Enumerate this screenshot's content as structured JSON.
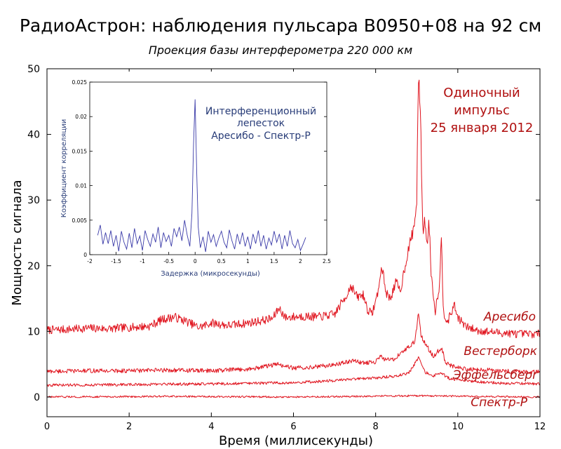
{
  "title": "РадиоАстрон: наблюдения пульсара B0950+08 на 92 см",
  "subtitle": "Проекция базы интерферометра  220 000 км",
  "annotation": [
    "Одиночный",
    "импульс",
    "25 января 2012"
  ],
  "colors": {
    "signal": "#e0141e",
    "annotation": "#b01010",
    "inset": "#3a3aa8",
    "inset_text": "#283c78"
  },
  "chart_data": [
    {
      "type": "line",
      "xlabel": "Время (миллисекунды)",
      "ylabel": "Мощность сигнала",
      "xlim": [
        0,
        12
      ],
      "ylim": [
        -3,
        50
      ],
      "xticks": [
        0,
        2,
        4,
        6,
        8,
        10,
        12
      ],
      "yticks": [
        0,
        10,
        20,
        30,
        40,
        50
      ],
      "grid": false,
      "series": [
        {
          "name": "Аресибо",
          "x": [
            0,
            0.5,
            1.0,
            1.5,
            2.0,
            2.5,
            2.8,
            3.1,
            3.4,
            3.7,
            4.0,
            4.4,
            4.8,
            5.2,
            5.5,
            5.65,
            5.8,
            6.2,
            6.6,
            7.0,
            7.3,
            7.4,
            7.55,
            7.7,
            7.8,
            7.9,
            8.0,
            8.1,
            8.15,
            8.25,
            8.35,
            8.5,
            8.6,
            8.7,
            8.8,
            8.9,
            8.95,
            9.0,
            9.03,
            9.06,
            9.1,
            9.15,
            9.2,
            9.25,
            9.3,
            9.35,
            9.45,
            9.55,
            9.6,
            9.65,
            9.75,
            9.85,
            9.9,
            10.0,
            10.1,
            10.2,
            10.5,
            11.0,
            11.5,
            12.0
          ],
          "values": [
            10.2,
            10.3,
            10.5,
            10.4,
            10.6,
            10.8,
            11.8,
            12.2,
            11.5,
            10.6,
            11.3,
            10.9,
            11.2,
            11.6,
            12.0,
            13.6,
            12.1,
            12.3,
            12.2,
            12.6,
            15.6,
            17.0,
            15.2,
            15.6,
            13.4,
            12.6,
            14.5,
            17.5,
            20.0,
            16.0,
            15.0,
            17.5,
            16.0,
            19.5,
            22.5,
            25.0,
            26.5,
            30.0,
            45.0,
            48.5,
            40.0,
            25.0,
            27.0,
            23.0,
            27.0,
            19.0,
            13.0,
            17.0,
            24.0,
            13.0,
            11.5,
            12.8,
            14.2,
            12.2,
            11.4,
            10.7,
            10.1,
            9.8,
            9.6,
            9.6
          ]
        },
        {
          "name": "Вестерборк",
          "x": [
            0,
            1,
            2,
            3,
            4,
            5,
            5.6,
            6.0,
            6.5,
            7.0,
            7.3,
            7.5,
            7.7,
            8.0,
            8.1,
            8.2,
            8.4,
            8.6,
            8.8,
            8.95,
            9.05,
            9.1,
            9.2,
            9.4,
            9.55,
            9.6,
            9.7,
            9.9,
            10.2,
            11.0,
            12.0
          ],
          "values": [
            3.9,
            4.0,
            4.0,
            4.1,
            4.0,
            4.3,
            5.0,
            4.4,
            4.6,
            4.9,
            5.4,
            5.5,
            5.2,
            5.3,
            6.3,
            5.8,
            5.6,
            6.6,
            7.6,
            8.4,
            13.0,
            9.5,
            8.2,
            6.2,
            7.2,
            7.6,
            5.3,
            4.6,
            4.3,
            4.0,
            3.8
          ]
        },
        {
          "name": "Эффельсберг",
          "x": [
            0,
            2,
            4,
            6,
            7,
            8,
            8.5,
            8.8,
            9.0,
            9.05,
            9.2,
            9.4,
            9.6,
            9.8,
            10.5,
            11.2,
            12.0
          ],
          "values": [
            1.8,
            1.9,
            2.0,
            2.2,
            2.5,
            2.9,
            3.2,
            3.6,
            5.5,
            6.0,
            3.8,
            3.2,
            3.6,
            2.8,
            2.3,
            2.1,
            2.0
          ]
        },
        {
          "name": "Спектр-Р",
          "x": [
            0,
            3,
            6,
            9,
            12
          ],
          "values": [
            0.0,
            0.1,
            0.0,
            0.2,
            0.0
          ]
        }
      ]
    },
    {
      "type": "line",
      "xlabel": "Задержка (микросекунды)",
      "ylabel": "Коэффициент корреляции",
      "xlim": [
        -2,
        2.5
      ],
      "ylim": [
        0,
        0.025
      ],
      "xticks": [
        "-2",
        "-1.5",
        "-1",
        "-0.5",
        "0",
        "0.5",
        "1",
        "1.5",
        "2",
        "2.5"
      ],
      "yticks": [
        "0",
        "0.005",
        "0.01",
        "0.015",
        "0.02",
        "0.025"
      ],
      "grid": false,
      "annotation": [
        "Интерференционный",
        "лепесток",
        "Аресибо - Спектр-Р"
      ],
      "series": [
        {
          "x": [
            -1.85,
            -1.8,
            -1.75,
            -1.7,
            -1.65,
            -1.6,
            -1.55,
            -1.5,
            -1.45,
            -1.4,
            -1.35,
            -1.3,
            -1.25,
            -1.2,
            -1.15,
            -1.1,
            -1.05,
            -1.0,
            -0.95,
            -0.9,
            -0.85,
            -0.8,
            -0.75,
            -0.7,
            -0.65,
            -0.6,
            -0.55,
            -0.5,
            -0.45,
            -0.4,
            -0.35,
            -0.3,
            -0.25,
            -0.2,
            -0.15,
            -0.1,
            -0.06,
            -0.03,
            0.0,
            0.03,
            0.06,
            0.1,
            0.15,
            0.2,
            0.25,
            0.3,
            0.35,
            0.4,
            0.45,
            0.5,
            0.55,
            0.6,
            0.65,
            0.7,
            0.75,
            0.8,
            0.85,
            0.9,
            0.95,
            1.0,
            1.05,
            1.1,
            1.15,
            1.2,
            1.25,
            1.3,
            1.35,
            1.4,
            1.45,
            1.5,
            1.55,
            1.6,
            1.65,
            1.7,
            1.75,
            1.8,
            1.85,
            1.9,
            1.95,
            2.0,
            2.05,
            2.1
          ],
          "values": [
            0.0028,
            0.0043,
            0.0015,
            0.0032,
            0.0016,
            0.0035,
            0.0012,
            0.0028,
            0.0005,
            0.0034,
            0.0018,
            0.0008,
            0.0031,
            0.001,
            0.0038,
            0.0016,
            0.0027,
            0.0006,
            0.0035,
            0.0022,
            0.0012,
            0.003,
            0.0018,
            0.004,
            0.001,
            0.0032,
            0.0019,
            0.0028,
            0.0012,
            0.0038,
            0.0026,
            0.004,
            0.002,
            0.005,
            0.0028,
            0.0012,
            0.006,
            0.016,
            0.0225,
            0.012,
            0.004,
            0.001,
            0.0026,
            0.0004,
            0.0034,
            0.0018,
            0.0029,
            0.0012,
            0.0024,
            0.0034,
            0.0018,
            0.001,
            0.0036,
            0.002,
            0.0008,
            0.003,
            0.0015,
            0.0032,
            0.0012,
            0.0026,
            0.0008,
            0.003,
            0.0016,
            0.0035,
            0.0012,
            0.0028,
            0.0008,
            0.0024,
            0.0014,
            0.0034,
            0.0018,
            0.003,
            0.0008,
            0.0028,
            0.0012,
            0.0035,
            0.0016,
            0.001,
            0.0022,
            0.0006,
            0.0015,
            0.0025
          ]
        }
      ]
    }
  ]
}
